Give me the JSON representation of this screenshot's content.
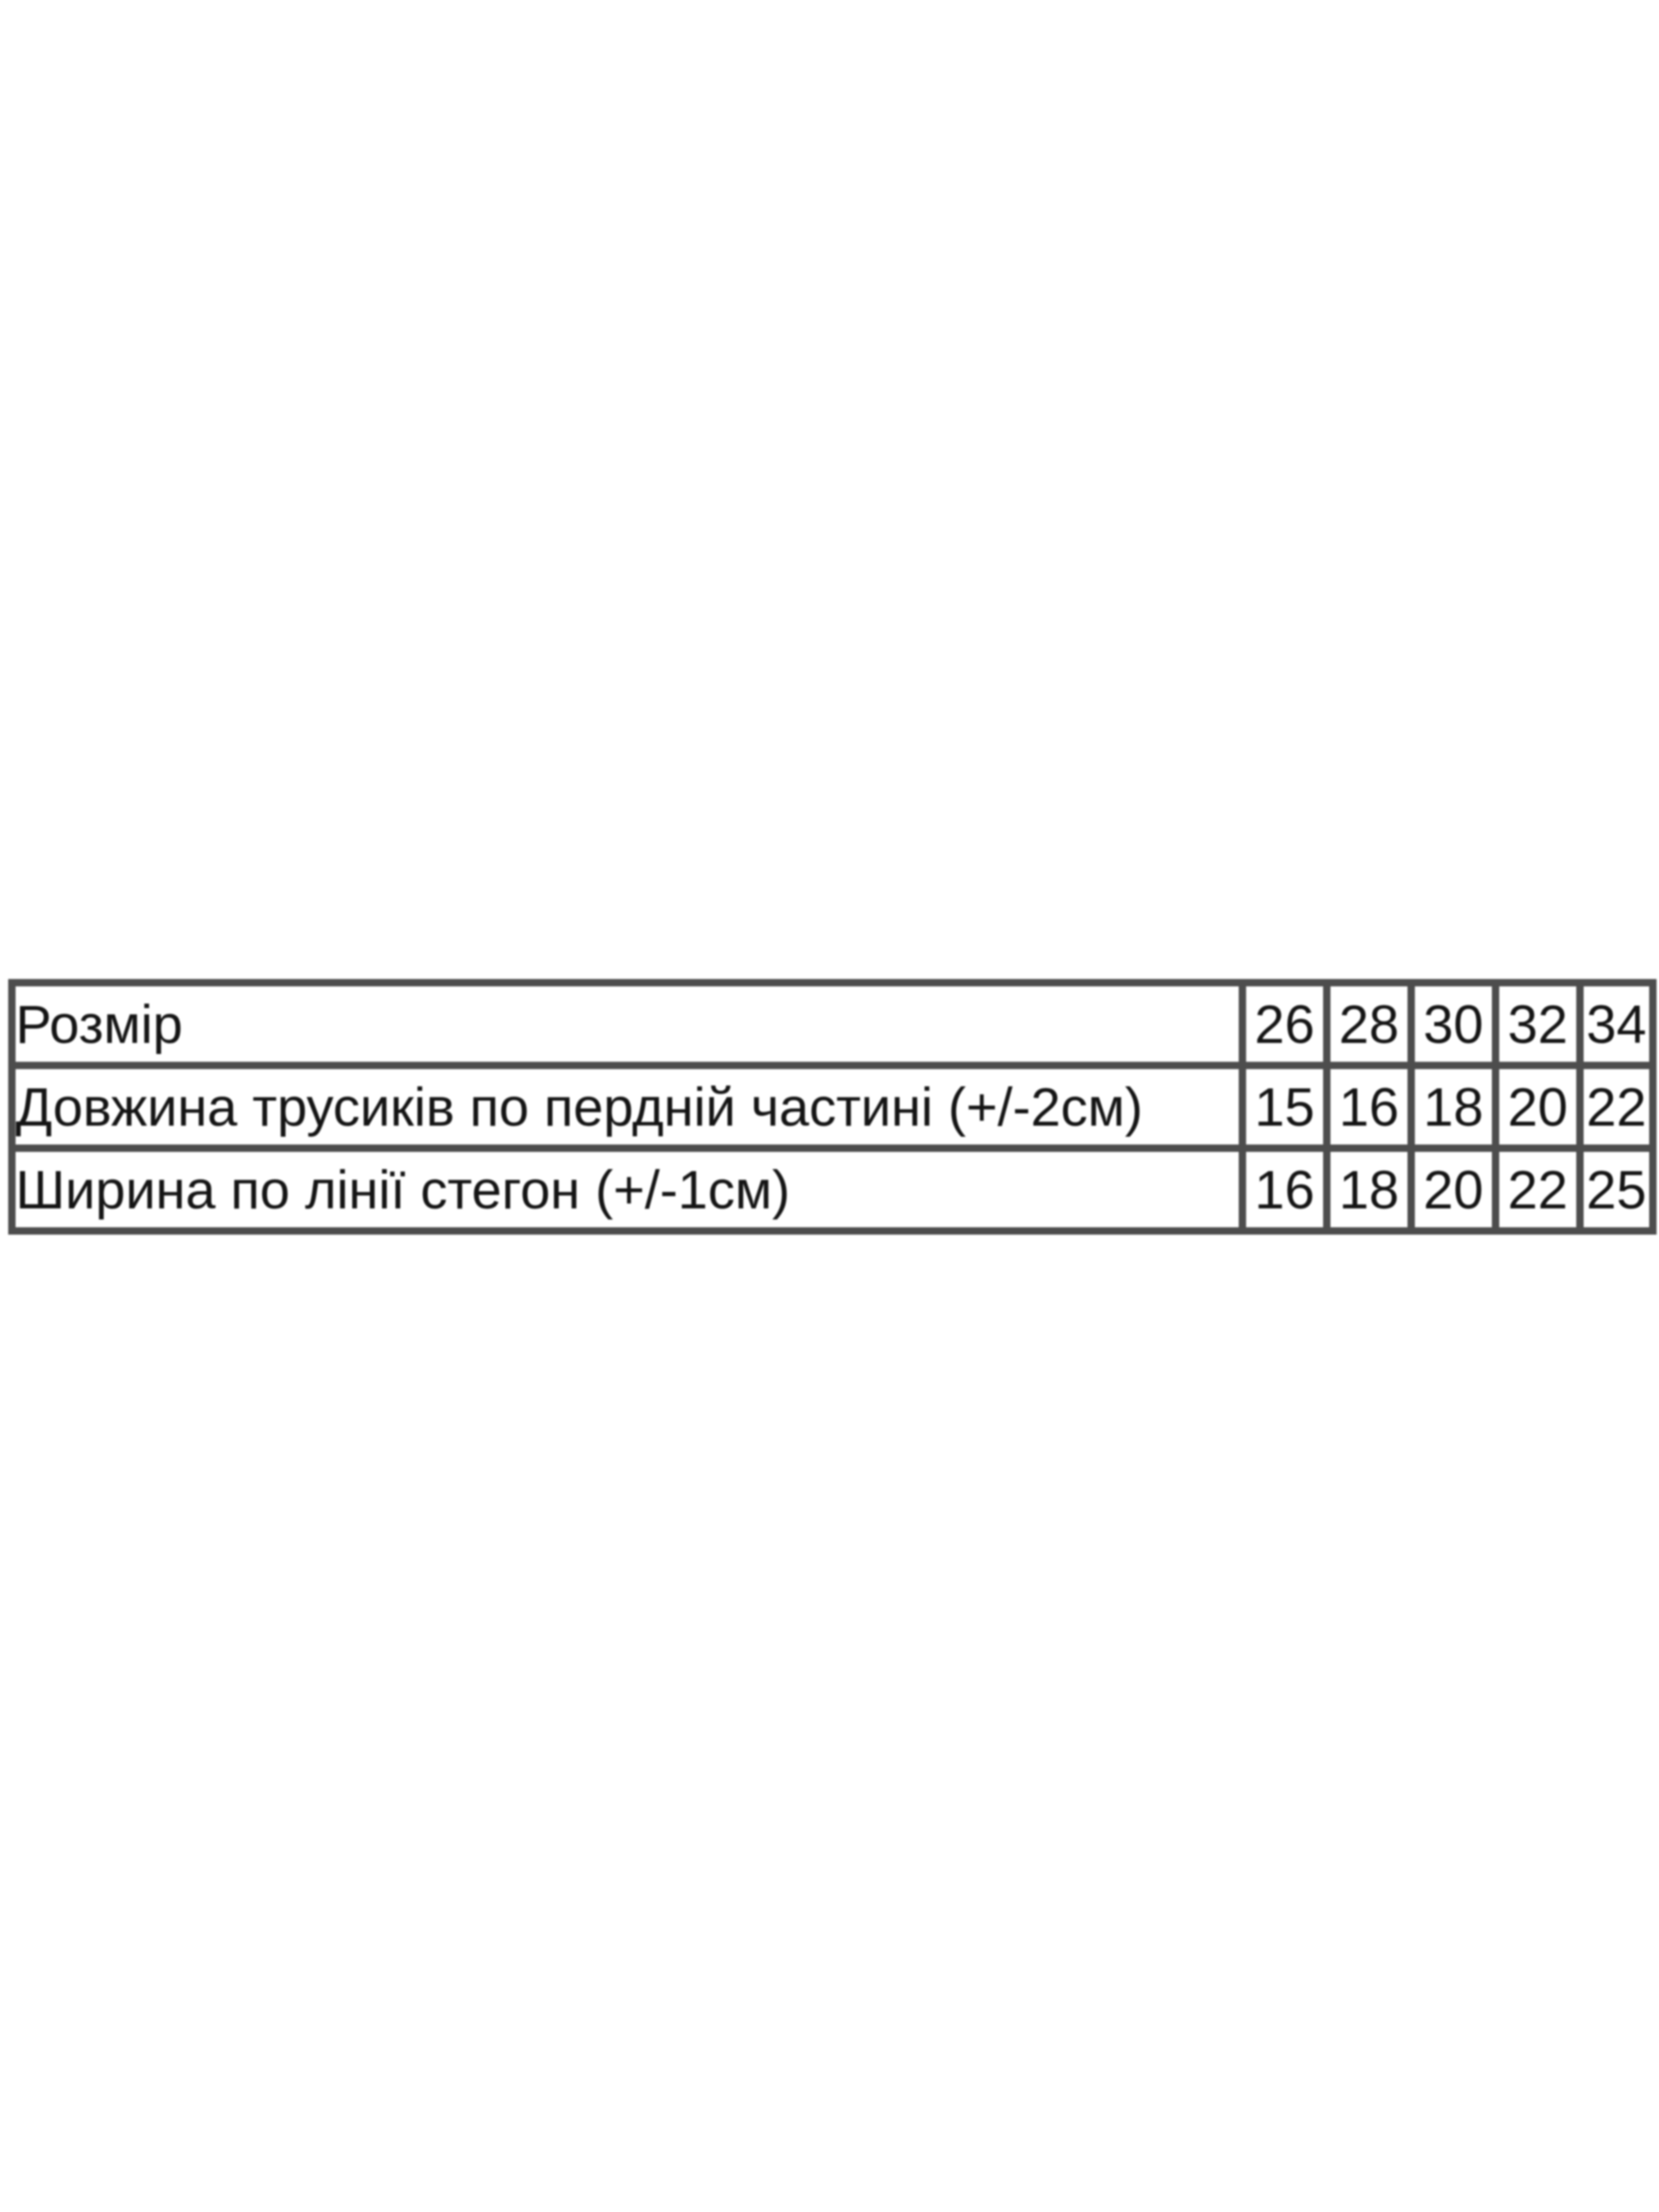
{
  "page": {
    "background_color": "#ffffff"
  },
  "colors": {
    "table_border": "#4d4d4d",
    "table_text": "#141414",
    "cell_background": "#ffffff"
  },
  "chart_data": {
    "type": "table",
    "layout_hints": {
      "columns": 6,
      "rows": 3,
      "first_column_is_label": true,
      "grid": "on"
    },
    "rows": [
      {
        "label": "Розмір",
        "values": [
          "26",
          "28",
          "30",
          "32",
          "34"
        ]
      },
      {
        "label": "Довжина трусиків по пердній частині (+/-2см)",
        "values": [
          "15",
          "16",
          "18",
          "20",
          "22"
        ]
      },
      {
        "label": "Ширина по лінії стегон (+/-1см)",
        "values": [
          "16",
          "18",
          "20",
          "22",
          "25"
        ]
      }
    ]
  }
}
